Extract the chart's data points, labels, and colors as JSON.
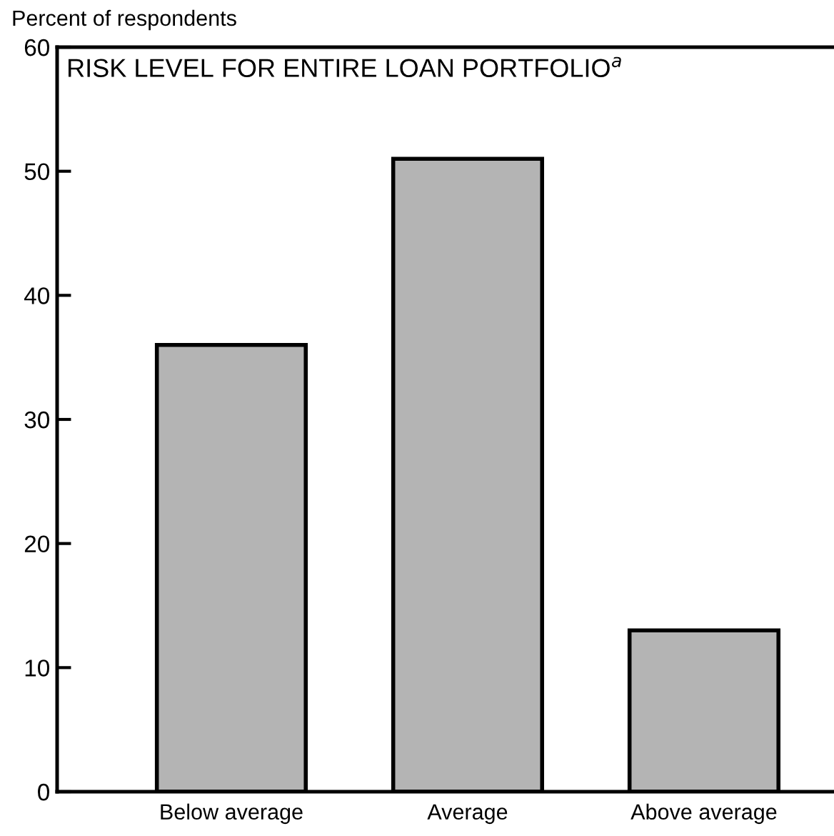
{
  "chart_data": {
    "type": "bar",
    "title": "RISK LEVEL FOR ENTIRE LOAN PORTFOLIO$^{a}$",
    "ylabel": "Percent of respondents",
    "categories": [
      "Below average",
      "Average",
      "Above average"
    ],
    "values": [
      36,
      51,
      13
    ],
    "color": "#b4b4b4",
    "ylim": [
      0,
      60
    ],
    "yticks": [
      0,
      10,
      20,
      30,
      40,
      50,
      60
    ],
    "grid": false,
    "legend": false
  }
}
